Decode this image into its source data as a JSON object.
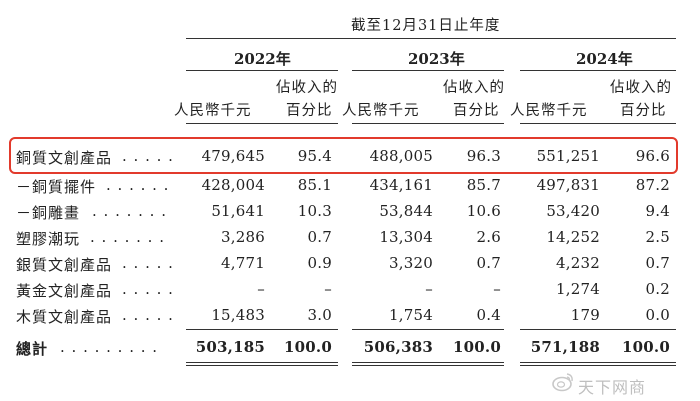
{
  "header": {
    "period": "截至12月31日止年度",
    "years": [
      "2022年",
      "2023年",
      "2024年"
    ],
    "col_amount": "人民幣千元",
    "col_pct_line1": "佔收入的",
    "col_pct_line2": "百分比"
  },
  "rows": [
    {
      "label": "銅質文創產品",
      "dots": ". . . . .",
      "v": [
        "479,645",
        "95.4",
        "488,005",
        "96.3",
        "551,251",
        "96.6"
      ]
    },
    {
      "label": "－銅質擺件",
      "dots": ". . . . . .",
      "v": [
        "428,004",
        "85.1",
        "434,161",
        "85.7",
        "497,831",
        "87.2"
      ]
    },
    {
      "label": "－銅雕畫",
      "dots": ". . . . . . .",
      "v": [
        "51,641",
        "10.3",
        "53,844",
        "10.6",
        "53,420",
        "9.4"
      ]
    },
    {
      "label": "塑膠潮玩",
      "dots": ". . . . . . .",
      "v": [
        "3,286",
        "0.7",
        "13,304",
        "2.6",
        "14,252",
        "2.5"
      ]
    },
    {
      "label": "銀質文創產品",
      "dots": ". . . . .",
      "v": [
        "4,771",
        "0.9",
        "3,320",
        "0.7",
        "4,232",
        "0.7"
      ]
    },
    {
      "label": "黃金文創產品",
      "dots": ". . . . .",
      "v": [
        "–",
        "–",
        "–",
        "–",
        "1,274",
        "0.2"
      ]
    },
    {
      "label": "木質文創產品",
      "dots": ". . . . .",
      "v": [
        "15,483",
        "3.0",
        "1,754",
        "0.4",
        "179",
        "0.0"
      ]
    },
    {
      "label": "總計",
      "dots": ". . . . . . . . .",
      "v": [
        "503,185",
        "100.0",
        "506,383",
        "100.0",
        "571,188",
        "100.0"
      ]
    }
  ],
  "watermark": "天下网商",
  "colors": {
    "highlight": "#e23a2c",
    "text": "#222222",
    "watermark": "#bfbfbf"
  }
}
